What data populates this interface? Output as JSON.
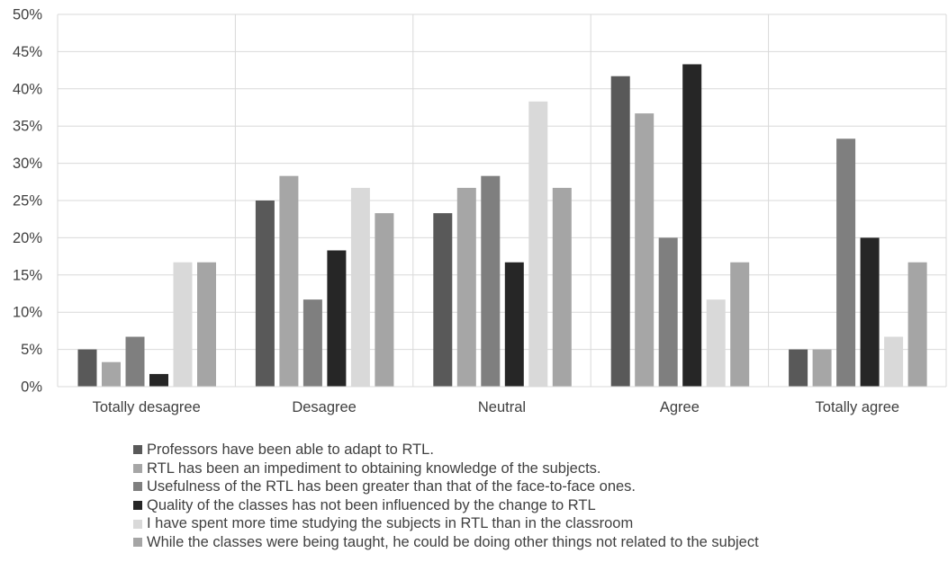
{
  "chart_data": {
    "type": "bar",
    "categories": [
      "Totally desagree",
      "Desagree",
      "Neutral",
      "Agree",
      "Totally agree"
    ],
    "ylim": [
      0,
      50
    ],
    "y_ticks": [
      "0%",
      "5%",
      "10%",
      "15%",
      "20%",
      "25%",
      "30%",
      "35%",
      "40%",
      "45%",
      "50%"
    ],
    "grid": true,
    "legend_position": "bottom",
    "series": [
      {
        "name": "Professors have been able to adapt to RTL.",
        "color": "#595959",
        "values": [
          5.0,
          25.0,
          23.3,
          41.7,
          5.0
        ]
      },
      {
        "name": "RTL has been an impediment to obtaining knowledge of the subjects.",
        "color": "#a6a6a6",
        "values": [
          3.3,
          28.3,
          26.7,
          36.7,
          5.0
        ]
      },
      {
        "name": "Usefulness of the RTL has been greater than that of the face-to-face ones.",
        "color": "#7f7f7f",
        "values": [
          6.7,
          11.7,
          28.3,
          20.0,
          33.3
        ]
      },
      {
        "name": "Quality of the classes has not been influenced by the change to RTL",
        "color": "#262626",
        "values": [
          1.7,
          18.3,
          16.7,
          43.3,
          20.0
        ]
      },
      {
        "name": "I have spent more time studying the subjects in RTL than in the classroom",
        "color": "#d9d9d9",
        "values": [
          16.7,
          26.7,
          38.3,
          11.7,
          6.7
        ]
      },
      {
        "name": "While the classes were being taught, he could be doing other things not related to the subject",
        "color": "#a5a5a5",
        "values": [
          16.7,
          23.3,
          26.7,
          16.7,
          16.7
        ]
      }
    ]
  }
}
